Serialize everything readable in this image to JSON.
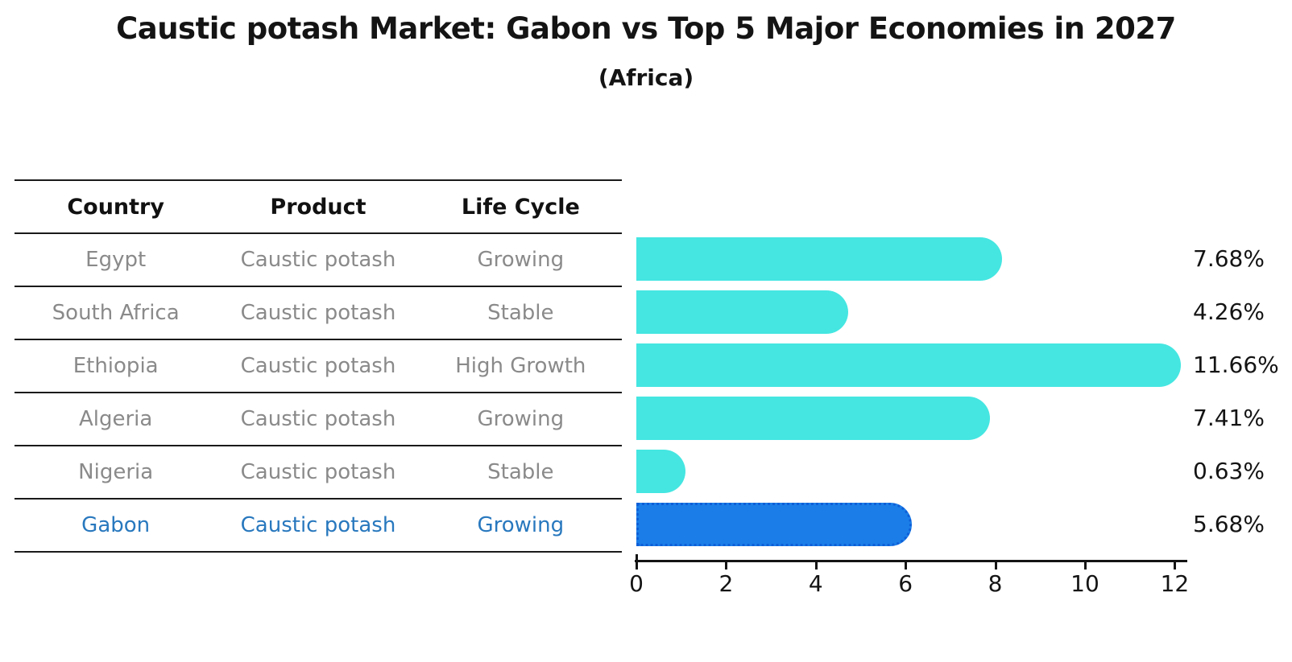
{
  "title": "Caustic potash Market: Gabon vs Top 5 Major Economies in 2027",
  "subtitle": "(Africa)",
  "table": {
    "headers": [
      "Country",
      "Product",
      "Life Cycle"
    ],
    "rows": [
      {
        "country": "Egypt",
        "product": "Caustic potash",
        "life_cycle": "Growing"
      },
      {
        "country": "South Africa",
        "product": "Caustic potash",
        "life_cycle": "Stable"
      },
      {
        "country": "Ethiopia",
        "product": "Caustic potash",
        "life_cycle": "High Growth"
      },
      {
        "country": "Algeria",
        "product": "Caustic potash",
        "life_cycle": "Growing"
      },
      {
        "country": "Nigeria",
        "product": "Caustic potash",
        "life_cycle": "Stable"
      },
      {
        "country": "Gabon",
        "product": "Caustic potash",
        "life_cycle": "Growing"
      }
    ]
  },
  "chart_data": {
    "type": "bar",
    "orientation": "horizontal",
    "title": "Caustic potash Market: Gabon vs Top 5 Major Economies in 2027",
    "subtitle": "(Africa)",
    "categories": [
      "Egypt",
      "South Africa",
      "Ethiopia",
      "Algeria",
      "Nigeria",
      "Gabon"
    ],
    "values": [
      7.68,
      4.26,
      11.66,
      7.41,
      0.63,
      5.68
    ],
    "value_labels": [
      "7.68%",
      "4.26%",
      "11.66%",
      "7.41%",
      "0.63%",
      "5.68%"
    ],
    "x_ticks": [
      0,
      2,
      4,
      6,
      8,
      10,
      12
    ],
    "xlim": [
      0,
      12
    ],
    "grid": false,
    "legend": false,
    "highlight_index": 5,
    "colors": {
      "default_bar": "#45e6e1",
      "highlight_bar": "#1b7ee8",
      "highlight_border": "#0e5fd8",
      "highlight_text": "#2878be",
      "table_text": "#8a8a8a",
      "header_text": "#111111"
    }
  }
}
